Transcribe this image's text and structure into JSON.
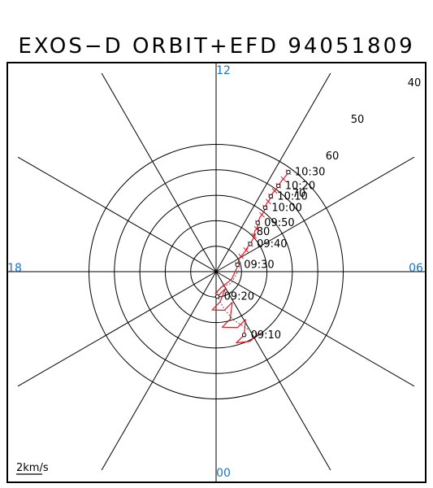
{
  "chart_data": {
    "type": "polar-orbit",
    "title": "EXOS−D ORBIT+EFD 94051809",
    "mlt_labels": [
      "12",
      "06",
      "00",
      "18"
    ],
    "latitude_rings": [
      "40",
      "50",
      "60",
      "70",
      "80"
    ],
    "scale_label": "2km/s",
    "colors": {
      "trace": "#e8141e",
      "mlt": "#1a73c8",
      "grid": "#000000"
    },
    "time_marks": [
      {
        "label": "09:10",
        "mlat": 62.8,
        "mlt": 1.6
      },
      {
        "label": "09:20",
        "mlat": 80.2,
        "mlt": 0.2
      },
      {
        "label": "09:30",
        "mlat": 81.2,
        "mlt": 7.2
      },
      {
        "label": "09:40",
        "mlat": 72.7,
        "mlt": 8.6
      },
      {
        "label": "09:50",
        "mlat": 64.8,
        "mlt": 9.3
      },
      {
        "label": "10:00",
        "mlat": 58.3,
        "mlt": 9.5
      },
      {
        "label": "10:10",
        "mlat": 53.4,
        "mlt": 9.6
      },
      {
        "label": "10:20",
        "mlat": 48.3,
        "mlt": 9.6
      },
      {
        "label": "10:30",
        "mlat": 41.7,
        "mlt": 9.6
      }
    ]
  }
}
